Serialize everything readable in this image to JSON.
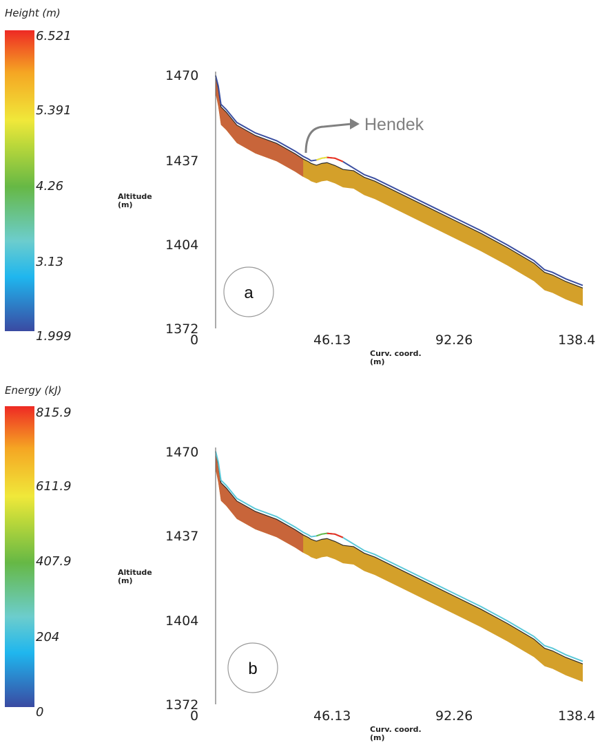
{
  "chart_data": [
    {
      "type": "line",
      "panel_label": "a",
      "legend": {
        "title": "Height (m)",
        "ticks": [
          "6.521",
          "5.391",
          "4.26",
          "3.13",
          "1.999"
        ],
        "range": [
          1.999,
          6.521
        ]
      },
      "ylabel": "Altitude",
      "ylabel_unit": "(m)",
      "xlabel": "Curv. coord.",
      "xlabel_unit": "(m)",
      "yticks": [
        "1470",
        "1437",
        "1404",
        "1372"
      ],
      "xticks": [
        "0",
        "46.13",
        "92.26",
        "138.4"
      ],
      "xlim": [
        0,
        138.4
      ],
      "ylim": [
        1372,
        1470
      ],
      "annotation": "Hendek",
      "series": [
        {
          "x": [
            0,
            1,
            2,
            4,
            8,
            15,
            23,
            30,
            33,
            35,
            36,
            38,
            40,
            42,
            45,
            48,
            52,
            56,
            60,
            70,
            80,
            90,
            100,
            110,
            120,
            124,
            127,
            132,
            138.4
          ],
          "values": [
            1469,
            1465,
            1458,
            1456,
            1451,
            1447,
            1444,
            1440,
            1438,
            1437,
            1436.3,
            1436.6,
            1437.3,
            1437.6,
            1437.3,
            1436,
            1433.5,
            1431,
            1429.5,
            1424.5,
            1419.5,
            1414.5,
            1409.5,
            1404,
            1398,
            1394.5,
            1393.5,
            1391,
            1388.5
          ]
        },
        {
          "x": [
            0,
            1,
            2,
            4,
            8,
            15,
            23,
            30,
            33,
            35,
            36,
            38,
            40,
            42,
            45,
            48,
            52,
            56,
            60,
            70,
            80,
            90,
            100,
            110,
            120,
            124,
            127,
            132,
            138.4
          ],
          "values": [
            1469,
            1464,
            1457,
            1455,
            1450,
            1446,
            1443,
            1439,
            1437,
            1436,
            1435.3,
            1434.6,
            1435.3,
            1435.6,
            1434.5,
            1433,
            1432.5,
            1430,
            1428.5,
            1423.5,
            1418.5,
            1413.5,
            1408.5,
            1403,
            1397,
            1393.5,
            1392.5,
            1390,
            1387.5
          ]
        }
      ]
    },
    {
      "type": "line",
      "panel_label": "b",
      "legend": {
        "title": "Energy (kJ)",
        "ticks": [
          "815.9",
          "611.9",
          "407.9",
          "204",
          "0"
        ],
        "range": [
          0,
          815.9
        ]
      },
      "ylabel": "Altitude",
      "ylabel_unit": "(m)",
      "xlabel": "Curv. coord.",
      "xlabel_unit": "(m)",
      "yticks": [
        "1470",
        "1437",
        "1404",
        "1372"
      ],
      "xticks": [
        "0",
        "46.13",
        "92.26",
        "138.4"
      ],
      "xlim": [
        0,
        138.4
      ],
      "ylim": [
        1372,
        1470
      ],
      "series": [
        {
          "x": [
            0,
            1,
            2,
            4,
            8,
            15,
            23,
            30,
            33,
            35,
            36,
            38,
            40,
            42,
            45,
            48,
            52,
            56,
            60,
            70,
            80,
            90,
            100,
            110,
            120,
            124,
            127,
            132,
            138.4
          ],
          "values": [
            1469,
            1465,
            1458,
            1456,
            1451,
            1447,
            1444,
            1440,
            1438,
            1437,
            1436.3,
            1436.6,
            1437.3,
            1437.6,
            1437.3,
            1436,
            1433.5,
            1431,
            1429.5,
            1424.5,
            1419.5,
            1414.5,
            1409.5,
            1404,
            1398,
            1394.5,
            1393.5,
            1391,
            1388.5
          ]
        },
        {
          "x": [
            0,
            1,
            2,
            4,
            8,
            15,
            23,
            30,
            33,
            35,
            36,
            38,
            40,
            42,
            45,
            48,
            52,
            56,
            60,
            70,
            80,
            90,
            100,
            110,
            120,
            124,
            127,
            132,
            138.4
          ],
          "values": [
            1469,
            1464,
            1457,
            1455,
            1450,
            1446,
            1443,
            1439,
            1437,
            1436,
            1435.3,
            1434.6,
            1435.3,
            1435.6,
            1434.5,
            1433,
            1432.5,
            1430,
            1428.5,
            1423.5,
            1418.5,
            1413.5,
            1408.5,
            1403,
            1397,
            1393.5,
            1392.5,
            1390,
            1387.5
          ]
        }
      ]
    }
  ],
  "colors": {
    "slope": "#d4a02a",
    "slope_upper": "#c8653a",
    "ground_line": "#2a2a2a",
    "trajectory_a": "#3b4fa0",
    "trajectory_b": "#5bc8d8",
    "annotation": "#808080",
    "colormap": [
      "#3a4aa2",
      "#1fb6ee",
      "#6ccdcd",
      "#66b845",
      "#bcd83a",
      "#f0e83a",
      "#f5a623",
      "#ee2a24"
    ]
  }
}
